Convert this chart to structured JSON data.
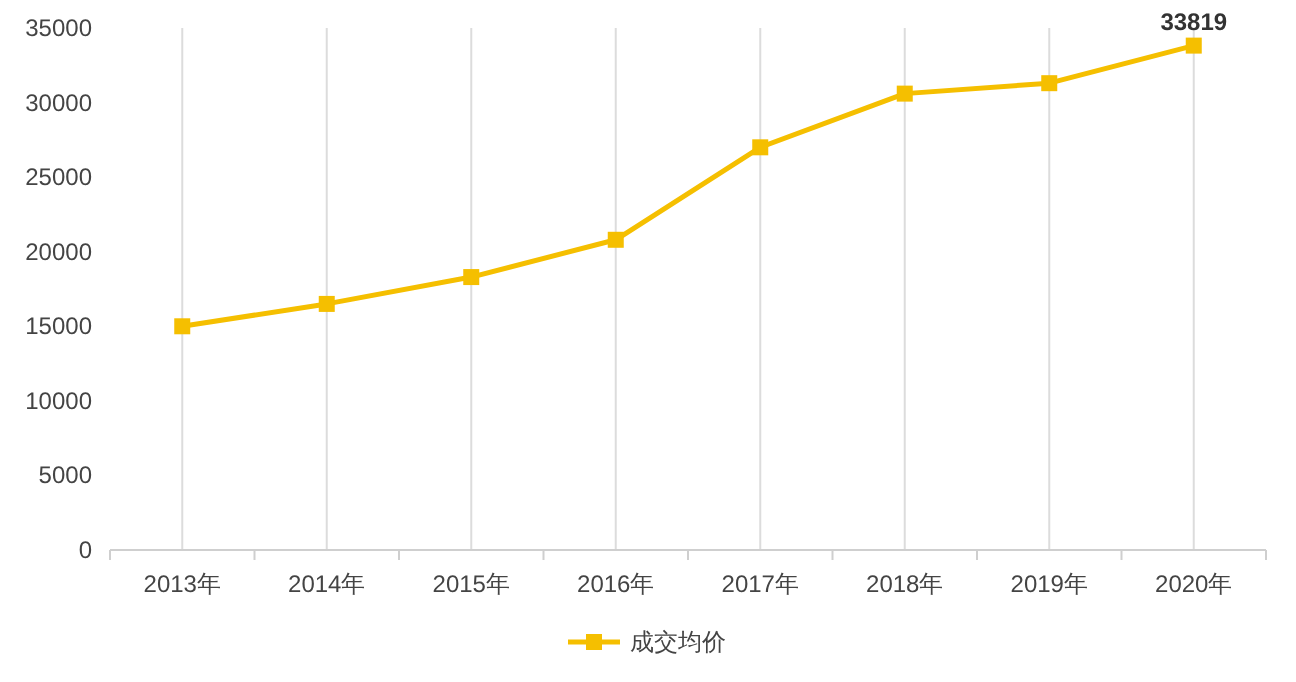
{
  "chart_data": {
    "type": "line",
    "categories": [
      "2013年",
      "2014年",
      "2015年",
      "2016年",
      "2017年",
      "2018年",
      "2019年",
      "2020年"
    ],
    "series": [
      {
        "name": "成交均价",
        "color": "#f5bf00",
        "values": [
          15000,
          16500,
          18300,
          20800,
          27000,
          30600,
          31300,
          33819
        ],
        "value_labels": [
          null,
          null,
          null,
          null,
          null,
          null,
          null,
          "33819"
        ]
      }
    ],
    "ylim": [
      0,
      35000
    ],
    "yticks": [
      0,
      5000,
      10000,
      15000,
      20000,
      25000,
      30000,
      35000
    ],
    "grid": "x",
    "legend": "bottom",
    "marker": "square",
    "line_style": "solid"
  }
}
